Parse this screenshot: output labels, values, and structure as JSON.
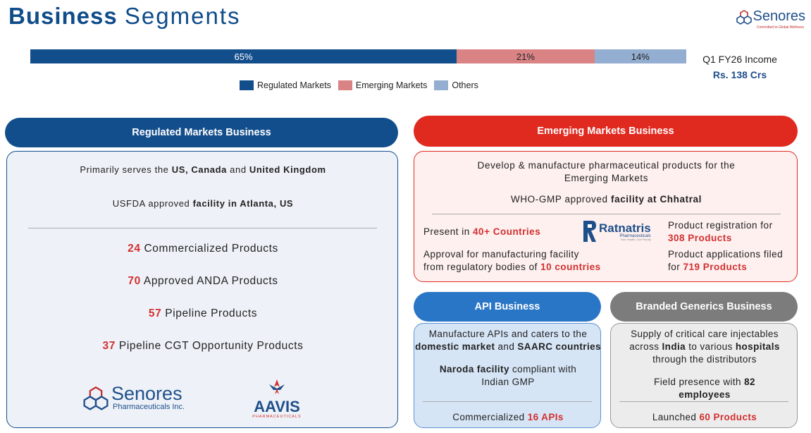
{
  "title": {
    "bold": "Business",
    "light": "Segments"
  },
  "brand": {
    "name": "Senores",
    "tagline": "Committed to Global Wellness"
  },
  "income": {
    "label": "Q1 FY26 Income",
    "value": "Rs. 138 Crs"
  },
  "bar": {
    "segments": [
      {
        "label": "65%",
        "value": 65,
        "color": "#134e8c",
        "text_color": "#ffffff"
      },
      {
        "label": "21%",
        "value": 21,
        "color": "#d98385",
        "text_color": "#222222"
      },
      {
        "label": "14%",
        "value": 14,
        "color": "#93aed0",
        "text_color": "#222222"
      }
    ]
  },
  "legend": [
    "Regulated Markets",
    "Emerging Markets",
    "Others"
  ],
  "regulated": {
    "header": "Regulated Markets Business",
    "line1_pre": "Primarily serves the ",
    "line1_b1": "US, Canada",
    "line1_mid": " and ",
    "line1_b2": "United Kingdom",
    "line2_pre": "USFDA approved ",
    "line2_b": "facility in Atlanta, US",
    "stats": [
      {
        "num": "24",
        "text": " Commercialized Products"
      },
      {
        "num": "70",
        "text": " Approved ANDA Products"
      },
      {
        "num": "57",
        "text": " Pipeline Products"
      },
      {
        "num": "37",
        "text": " Pipeline CGT Opportunity Products"
      }
    ],
    "logo1_name": "Senores",
    "logo1_sub": "Pharmaceuticals Inc.",
    "logo2_name": "AAVIS",
    "logo2_sub": "PHARMACEUTICALS"
  },
  "emerging": {
    "header": "Emerging Markets Business",
    "line1": "Develop & manufacture pharmaceutical products for the",
    "line1b": "Emerging Markets",
    "line2_pre": "WHO-GMP approved ",
    "line2_b": "facility at Chhatral",
    "present_pre": "Present in ",
    "present_red": "40+ Countries",
    "approval_l1": "Approval for manufacturing facility",
    "approval_pre": "from regulatory bodies of ",
    "approval_red": "10 countries",
    "reg_l1": "Product registration for",
    "reg_red": "308 Products",
    "apps_l1": "Product applications filed",
    "apps_pre": "for ",
    "apps_red": "719 Products",
    "logo_name": "Ratnatris",
    "logo_sub": "Pharmaceuticals",
    "logo_tag": "Your Health, Our Priority"
  },
  "api": {
    "header": "API Business",
    "l1": "Manufacture APIs and caters to the",
    "l2_b1": "domestic market",
    "l2_mid": " and ",
    "l2_b2": "SAARC countries",
    "l3_b": "Naroda facility",
    "l3_rest": " compliant with",
    "l4": "Indian GMP",
    "l5_pre": "Commercialized ",
    "l5_red": "16 APIs"
  },
  "branded": {
    "header": "Branded Generics Business",
    "l1": "Supply of critical care injectables",
    "l2_pre": "across ",
    "l2_b1": "India",
    "l2_mid": " to various ",
    "l2_b2": "hospitals",
    "l3": "through the distributors",
    "l4_pre": "Field presence with ",
    "l4_b": "82",
    "l5_b": "employees",
    "l6_pre": "Launched ",
    "l6_red": "60 Products"
  }
}
